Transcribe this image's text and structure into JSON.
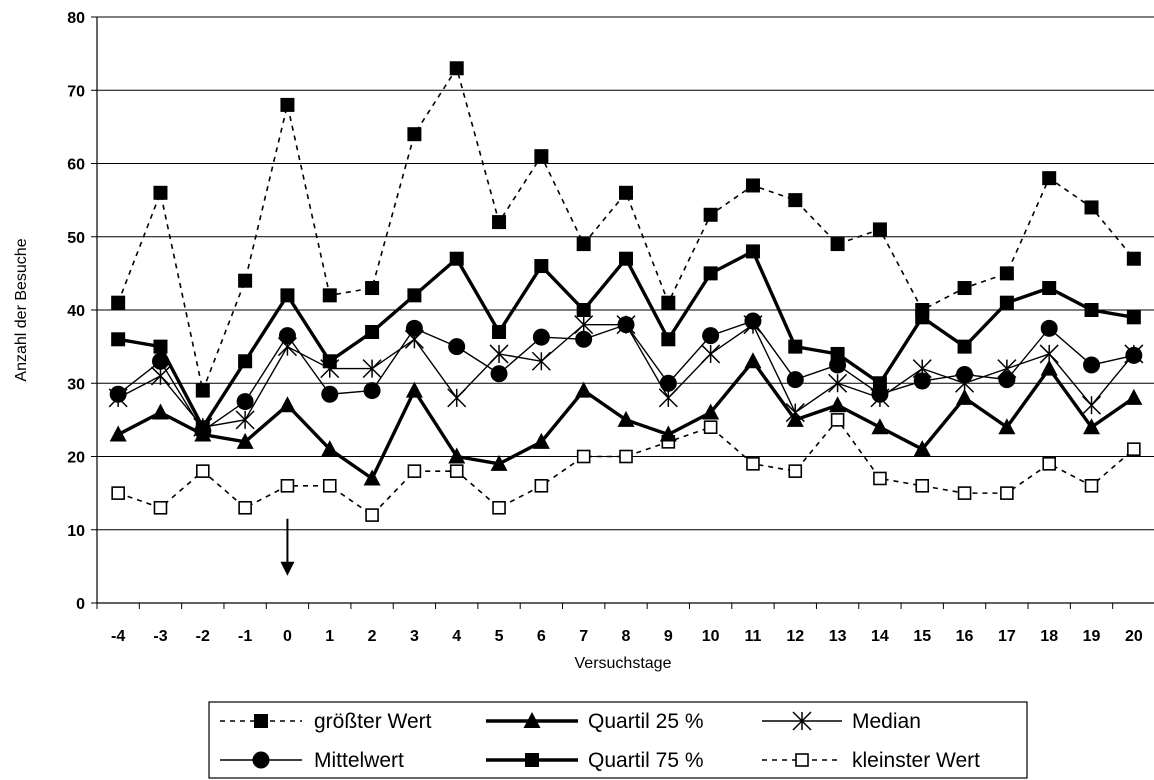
{
  "chart_data": {
    "type": "line",
    "title": "",
    "xlabel": "Versuchstage",
    "ylabel": "Anzahl der Besuche",
    "ylim": [
      0,
      80
    ],
    "y_ticks": [
      "0",
      "10",
      "20",
      "30",
      "40",
      "50",
      "60",
      "70",
      "80"
    ],
    "x": [
      "-4",
      "-3",
      "-2",
      "-1",
      "0",
      "1",
      "2",
      "3",
      "4",
      "5",
      "6",
      "7",
      "8",
      "9",
      "10",
      "11",
      "12",
      "13",
      "14",
      "15",
      "16",
      "17",
      "18",
      "19",
      "20"
    ],
    "grid": "horizontal",
    "legend_position": "bottom",
    "annotation": {
      "type": "arrow-down",
      "at_x": "0",
      "from_y": 11.5,
      "to_y": 4
    },
    "series": [
      {
        "name": "größter Wert",
        "line": "dotted",
        "marker": "square-filled",
        "values": [
          41,
          56,
          29,
          44,
          68,
          42,
          43,
          64,
          73,
          52,
          61,
          49,
          56,
          41,
          53,
          57,
          55,
          49,
          51,
          40,
          43,
          45,
          58,
          54,
          47
        ]
      },
      {
        "name": "Quartil 25 %",
        "line": "thick",
        "marker": "triangle-filled",
        "values": [
          23,
          26,
          23,
          22,
          27,
          21,
          17,
          29,
          20,
          19,
          22,
          29,
          25,
          23,
          26,
          33,
          25,
          27,
          24,
          21,
          28,
          24,
          32,
          24,
          28
        ]
      },
      {
        "name": "Median",
        "line": "thin",
        "marker": "asterisk",
        "values": [
          28,
          31,
          24,
          25,
          35,
          32,
          32,
          36,
          28,
          34,
          33,
          38,
          38,
          28,
          34,
          38,
          26,
          30,
          28,
          32,
          30,
          32,
          34,
          27,
          34
        ]
      },
      {
        "name": "Mittelwert",
        "line": "thin",
        "marker": "circle-filled",
        "values": [
          28.5,
          33,
          23.5,
          27.5,
          36.5,
          28.5,
          29,
          37.5,
          35,
          31.3,
          36.3,
          36,
          38,
          30,
          36.5,
          38.5,
          30.5,
          32.5,
          28.5,
          30.3,
          31.2,
          30.5,
          37.5,
          32.5,
          33.8
        ]
      },
      {
        "name": "Quartil 75 %",
        "line": "thick",
        "marker": "square-filled",
        "values": [
          36,
          35,
          24,
          33,
          42,
          33,
          37,
          42,
          47,
          37,
          46,
          40,
          47,
          36,
          45,
          48,
          35,
          34,
          30,
          39,
          35,
          41,
          43,
          40,
          39
        ]
      },
      {
        "name": "kleinster Wert",
        "line": "dotted",
        "marker": "square-open",
        "values": [
          15,
          13,
          18,
          13,
          16,
          16,
          12,
          18,
          18,
          13,
          16,
          20,
          20,
          22,
          24,
          19,
          18,
          25,
          17,
          16,
          15,
          15,
          19,
          16,
          21
        ]
      }
    ]
  }
}
